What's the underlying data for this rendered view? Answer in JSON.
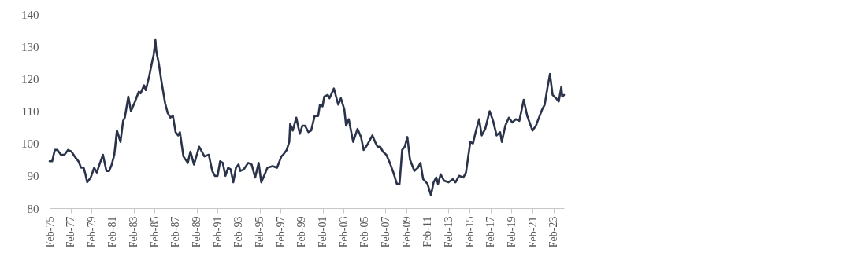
{
  "chart_data": {
    "type": "line",
    "x": [
      "1975-02",
      "1975-05",
      "1975-08",
      "1975-11",
      "1976-03",
      "1976-07",
      "1976-11",
      "1977-03",
      "1977-08",
      "1977-11",
      "1978-02",
      "1978-05",
      "1978-07",
      "1978-09",
      "1979-01",
      "1979-05",
      "1979-08",
      "1979-11",
      "1980-03",
      "1980-07",
      "1980-10",
      "1981-01",
      "1981-04",
      "1981-07",
      "1981-11",
      "1982-02",
      "1982-04",
      "1982-08",
      "1982-11",
      "1983-03",
      "1983-08",
      "1983-10",
      "1984-02",
      "1984-04",
      "1984-08",
      "1984-11",
      "1985-01",
      "1985-03",
      "1985-04",
      "1985-07",
      "1985-10",
      "1986-02",
      "1986-05",
      "1986-08",
      "1986-11",
      "1987-02",
      "1987-05",
      "1987-07",
      "1987-11",
      "1988-04",
      "1988-07",
      "1988-11",
      "1989-05",
      "1989-08",
      "1989-11",
      "1990-04",
      "1990-08",
      "1990-11",
      "1991-02",
      "1991-05",
      "1991-08",
      "1991-11",
      "1992-02",
      "1992-05",
      "1992-08",
      "1992-11",
      "1993-02",
      "1993-04",
      "1993-08",
      "1994-01",
      "1994-05",
      "1994-09",
      "1995-01",
      "1995-04",
      "1995-08",
      "1995-11",
      "1996-05",
      "1996-10",
      "1997-03",
      "1997-05",
      "1997-09",
      "1997-12",
      "1998-01",
      "1998-04",
      "1998-08",
      "1998-12",
      "1999-03",
      "1999-06",
      "1999-10",
      "2000-01",
      "2000-05",
      "2000-09",
      "2000-11",
      "2001-02",
      "2001-04",
      "2001-08",
      "2001-10",
      "2002-03",
      "2002-06",
      "2002-08",
      "2002-11",
      "2003-03",
      "2003-05",
      "2003-08",
      "2004-01",
      "2004-06",
      "2004-10",
      "2005-01",
      "2005-05",
      "2005-08",
      "2005-11",
      "2006-02",
      "2006-05",
      "2006-08",
      "2006-11",
      "2007-03",
      "2007-07",
      "2007-11",
      "2008-03",
      "2008-06",
      "2008-09",
      "2008-12",
      "2009-03",
      "2009-06",
      "2009-11",
      "2010-03",
      "2010-06",
      "2010-09",
      "2011-02",
      "2011-06",
      "2011-09",
      "2011-12",
      "2012-02",
      "2012-05",
      "2012-09",
      "2013-02",
      "2013-07",
      "2013-10",
      "2014-02",
      "2014-07",
      "2014-10",
      "2015-03",
      "2015-06",
      "2015-09",
      "2016-01",
      "2016-04",
      "2016-08",
      "2017-01",
      "2017-05",
      "2017-09",
      "2018-01",
      "2018-03",
      "2018-07",
      "2018-11",
      "2019-03",
      "2019-07",
      "2019-11",
      "2020-04",
      "2020-08",
      "2021-02",
      "2021-06",
      "2021-08",
      "2022-01",
      "2022-04",
      "2022-07",
      "2022-10",
      "2023-01",
      "2023-05",
      "2023-08",
      "2023-11",
      "2023-12",
      "2024-02"
    ],
    "series": [
      {
        "color": "#2a3349",
        "values": [
          94.5,
          94.5,
          98,
          98,
          96.5,
          96.5,
          98,
          97.5,
          95.5,
          94.5,
          92.5,
          92.5,
          90.5,
          88,
          89.5,
          92.5,
          91,
          93.5,
          96.5,
          91.5,
          91.5,
          93.5,
          96.5,
          104,
          100.5,
          107,
          108,
          114.5,
          110,
          112.5,
          116,
          115.5,
          118,
          116.5,
          121,
          125,
          127.5,
          132,
          128.5,
          124.5,
          119,
          112.5,
          109.5,
          108,
          108.5,
          103.5,
          102.5,
          103.5,
          96,
          94,
          97.5,
          93.5,
          99,
          97.5,
          96,
          96.5,
          91.5,
          90,
          90,
          94.5,
          94,
          90,
          92.5,
          92,
          88,
          92.5,
          93.5,
          91.5,
          92,
          94,
          93.5,
          89.5,
          94,
          88,
          90.5,
          92.5,
          93,
          92.5,
          96,
          96.5,
          98,
          100.5,
          106,
          104,
          108,
          103,
          105.5,
          105.5,
          103.5,
          104,
          108.5,
          108.5,
          112,
          111.5,
          114.5,
          115,
          114,
          117,
          114,
          112,
          114,
          110.5,
          105.5,
          107.5,
          100.5,
          104.5,
          102,
          98,
          99.5,
          101,
          102.5,
          100.5,
          99,
          99,
          97.5,
          96.5,
          94,
          91,
          87.5,
          87.5,
          98,
          99,
          102,
          95,
          91.5,
          92.5,
          94,
          89,
          87.5,
          84,
          88,
          89.5,
          87.5,
          90.5,
          88.5,
          88,
          89,
          88,
          90,
          89.5,
          91,
          100.5,
          100,
          103.5,
          107.5,
          102.5,
          104.5,
          110,
          107,
          102.5,
          103.5,
          100.5,
          105.5,
          108,
          106.5,
          107.5,
          107,
          113.5,
          108.5,
          104,
          105.5,
          107,
          110.5,
          112,
          117,
          121.5,
          115,
          114,
          113,
          117.5,
          114.5,
          115
        ]
      }
    ],
    "xlim": [
      "1975-02",
      "2024-02"
    ],
    "xticks": [
      {
        "value": "1975-02",
        "label": "Feb-75"
      },
      {
        "value": "1977-02",
        "label": "Feb-77"
      },
      {
        "value": "1979-02",
        "label": "Feb-79"
      },
      {
        "value": "1981-02",
        "label": "Feb-81"
      },
      {
        "value": "1983-02",
        "label": "Feb-83"
      },
      {
        "value": "1985-02",
        "label": "Feb-85"
      },
      {
        "value": "1987-02",
        "label": "Feb-87"
      },
      {
        "value": "1989-02",
        "label": "Feb-89"
      },
      {
        "value": "1991-02",
        "label": "Feb-91"
      },
      {
        "value": "1993-02",
        "label": "Feb-93"
      },
      {
        "value": "1995-02",
        "label": "Feb-95"
      },
      {
        "value": "1997-02",
        "label": "Feb-97"
      },
      {
        "value": "1999-02",
        "label": "Feb-99"
      },
      {
        "value": "2001-02",
        "label": "Feb-01"
      },
      {
        "value": "2003-02",
        "label": "Feb-03"
      },
      {
        "value": "2005-02",
        "label": "Feb-05"
      },
      {
        "value": "2007-02",
        "label": "Feb-07"
      },
      {
        "value": "2009-02",
        "label": "Feb-09"
      },
      {
        "value": "2011-02",
        "label": "Feb-11"
      },
      {
        "value": "2013-02",
        "label": "Feb-13"
      },
      {
        "value": "2015-02",
        "label": "Feb-15"
      },
      {
        "value": "2017-02",
        "label": "Feb-17"
      },
      {
        "value": "2019-02",
        "label": "Feb-19"
      },
      {
        "value": "2021-02",
        "label": "Feb-21"
      },
      {
        "value": "2023-02",
        "label": "Feb-23"
      }
    ],
    "ylim": [
      80,
      140
    ],
    "yticks": [
      80,
      90,
      100,
      110,
      120,
      130,
      140
    ],
    "line_style": "solid"
  }
}
